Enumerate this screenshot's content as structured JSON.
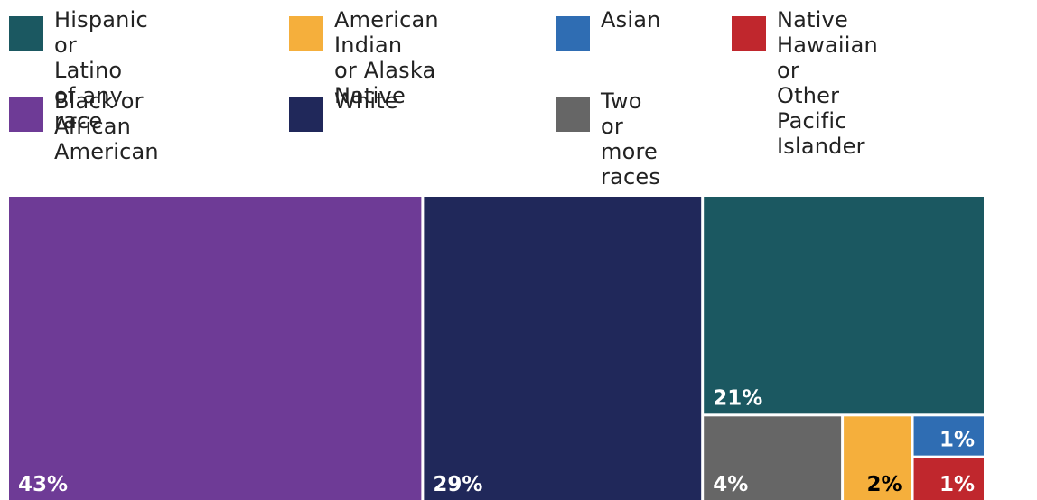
{
  "chart_data": {
    "type": "treemap",
    "categories": [
      {
        "key": "hispanic",
        "label": "Hispanic or\nLatino of any race",
        "value": 21,
        "value_label": "21%",
        "color": "#1b5861",
        "label_color": "#ffffff"
      },
      {
        "key": "aian",
        "label": "American Indian\nor Alaska Native",
        "value": 2,
        "value_label": "2%",
        "color": "#f5af3c",
        "label_color": "#000000"
      },
      {
        "key": "asian",
        "label": "Asian",
        "value": 1,
        "value_label": "1%",
        "color": "#2f6db3",
        "label_color": "#ffffff"
      },
      {
        "key": "nhpi",
        "label": "Native Hawaiian or\nOther Pacific Islander",
        "value": 1,
        "value_label": "1%",
        "color": "#c0272d",
        "label_color": "#ffffff"
      },
      {
        "key": "black",
        "label": "Black or African\nAmerican",
        "value": 43,
        "value_label": "43%",
        "color": "#6e3b96",
        "label_color": "#ffffff"
      },
      {
        "key": "white",
        "label": "White",
        "value": 29,
        "value_label": "29%",
        "color": "#20285a",
        "label_color": "#ffffff"
      },
      {
        "key": "two_or_more",
        "label": "Two or\nmore races",
        "value": 4,
        "value_label": "4%",
        "color": "#666666",
        "label_color": "#ffffff"
      }
    ],
    "legend_position": "top"
  }
}
